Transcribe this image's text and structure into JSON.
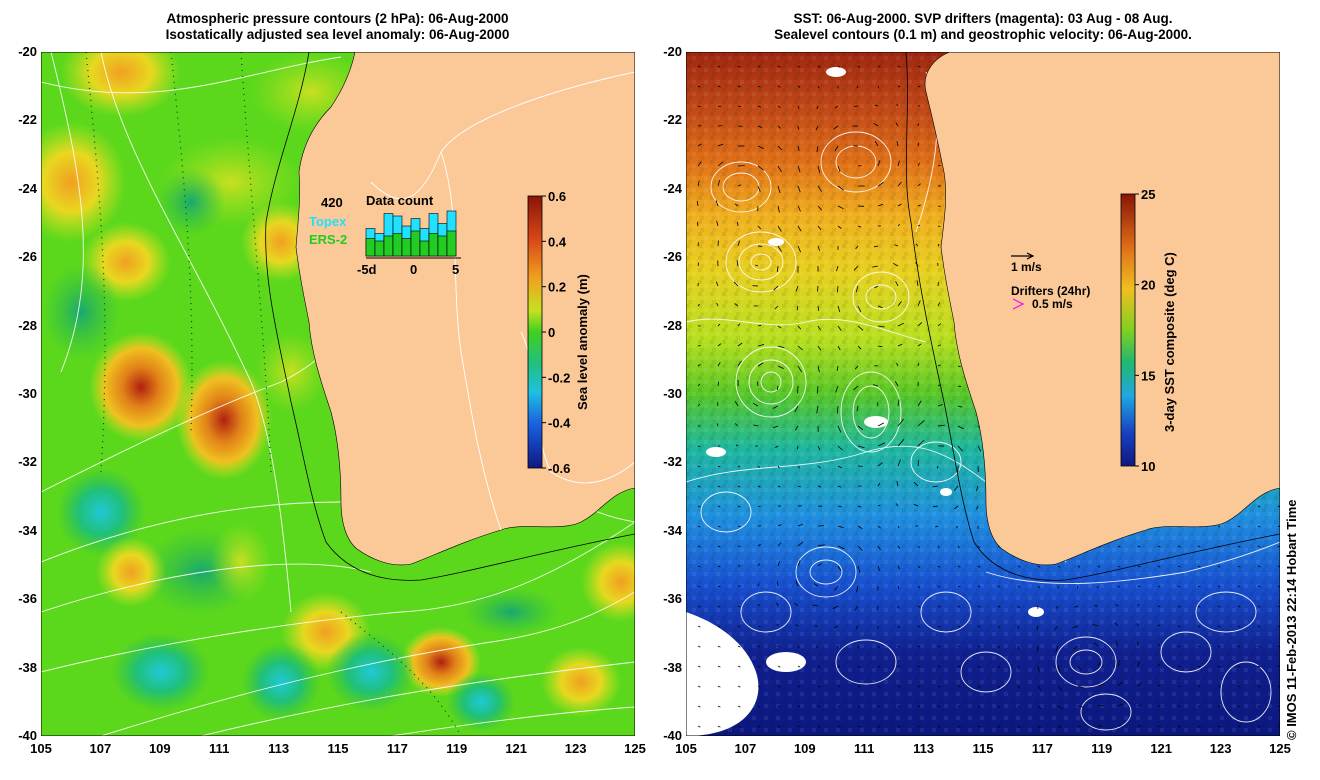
{
  "left_panel": {
    "title_line1": "Atmospheric pressure contours (2 hPa): 06-Aug-2000",
    "title_line2": "Isostatically adjusted sea level anomaly: 06-Aug-2000",
    "colorbar": {
      "label": "Sea level anomaly (m)",
      "ticks": [
        "0.6",
        "0.4",
        "0.2",
        "0",
        "-0.2",
        "-0.4",
        "-0.6"
      ],
      "range": [
        -0.6,
        0.6
      ]
    },
    "data_count": {
      "title": "Data count",
      "max_label": "420",
      "topex_label": "Topex",
      "ers_label": "ERS-2",
      "x_ticks": [
        "-5d",
        "0",
        "5"
      ],
      "topex_color": "#22e0ff",
      "ers_color": "#22cc22",
      "topex_fraction": [
        0.55,
        0.45,
        0.85,
        0.8,
        0.6,
        0.75,
        0.55,
        0.85,
        0.65,
        0.9
      ],
      "ers_fraction": [
        0.35,
        0.3,
        0.4,
        0.45,
        0.35,
        0.5,
        0.3,
        0.45,
        0.4,
        0.5
      ]
    }
  },
  "right_panel": {
    "title_line1": "SST: 06-Aug-2000. SVP drifters (magenta): 03 Aug - 08 Aug.",
    "title_line2": "Sealevel contours (0.1 m) and geostrophic velocity: 06-Aug-2000.",
    "colorbar": {
      "label": "3-day SST composite (deg C)",
      "ticks": [
        "25",
        "20",
        "15",
        "10"
      ],
      "range": [
        10,
        25
      ]
    },
    "velocity_scale_label": "1 m/s",
    "drifters_title": "Drifters (24hr)",
    "drifters_scale_label": "0.5 m/s",
    "drifter_color": "#ff00ff"
  },
  "axes": {
    "y_ticks": [
      "-20",
      "-22",
      "-24",
      "-26",
      "-28",
      "-30",
      "-32",
      "-34",
      "-36",
      "-38",
      "-40"
    ],
    "x_ticks": [
      "105",
      "107",
      "109",
      "111",
      "113",
      "115",
      "117",
      "119",
      "121",
      "123",
      "125"
    ],
    "lon_range": [
      105,
      125
    ],
    "lat_range": [
      -40,
      -20
    ]
  },
  "colors": {
    "land": "#fbc898",
    "ocean_green": "#5cd81c"
  },
  "credit": "© IMOS 11-Feb-2013 22:14 Hobart Time"
}
